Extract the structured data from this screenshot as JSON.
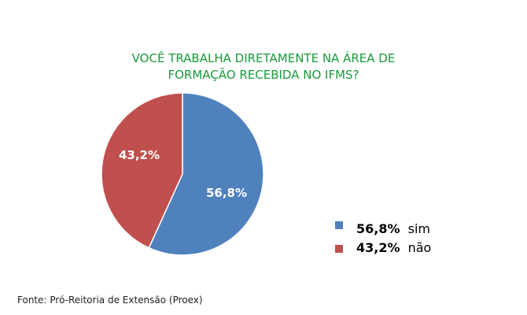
{
  "chart_data": {
    "type": "pie",
    "title_lines": [
      "VOCÊ TRABALHA DIRETAMENTE NA ÁREA DE",
      "FORMAÇÃO RECEBIDA NO IFMS?"
    ],
    "slices": [
      {
        "name": "sim",
        "value": 56.8,
        "label": "56,8%",
        "color": "#4f81bd"
      },
      {
        "name": "não",
        "value": 43.2,
        "label": "43,2%",
        "color": "#c0504d"
      }
    ],
    "legend_position": "bottom-right"
  },
  "source": "Fonte: Pró-Reitoria de Extensão (Proex)",
  "title_color": "#1a9a3c"
}
